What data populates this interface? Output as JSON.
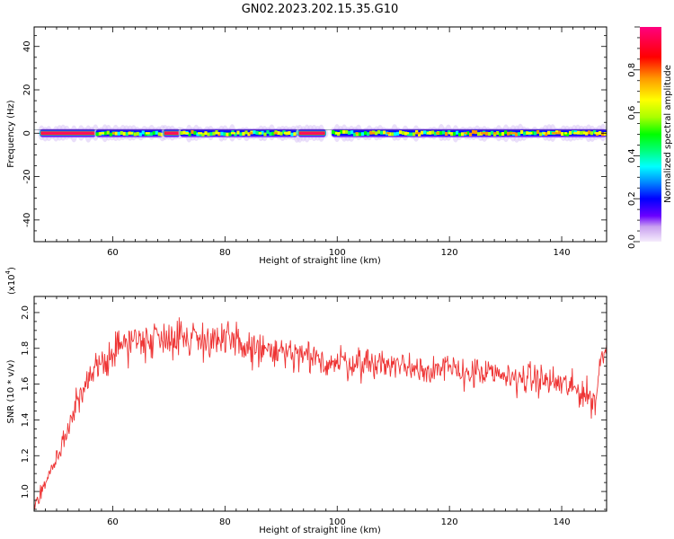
{
  "title": "GN02.2023.202.15.35.G10",
  "chart_data": [
    {
      "type": "heatmap",
      "xlabel": "Height of straight line (km)",
      "ylabel": "Frequency (Hz)",
      "xlim": [
        46,
        148
      ],
      "ylim": [
        -50,
        49
      ],
      "x_ticks": [
        60,
        80,
        100,
        120,
        140
      ],
      "y_ticks": [
        -40,
        -20,
        0,
        20,
        40
      ],
      "colorbar": {
        "label": "Normalized spectral amplitude",
        "range": [
          0,
          1
        ],
        "ticks": [
          "0.0",
          "0.2",
          "0.4",
          "0.6",
          "0.8"
        ],
        "tick_values": [
          0,
          0.2,
          0.4,
          0.6,
          0.8
        ],
        "colors": [
          "#f5ecfc",
          "#c9a0f0",
          "#6a00ff",
          "#0000ff",
          "#0090ff",
          "#00ffff",
          "#00ff80",
          "#00ff00",
          "#aaff00",
          "#ffff00",
          "#ff9900",
          "#ff0000",
          "#ff007f"
        ]
      },
      "band_center_hz": 0,
      "gaps_km": [
        [
          68.5,
          70.5
        ],
        [
          98,
          99
        ]
      ],
      "segments": [
        {
          "x": [
            47,
            57
          ],
          "intensity": "red"
        },
        {
          "x": [
            57,
            69
          ],
          "intensity": "mixed"
        },
        {
          "x": [
            69,
            72
          ],
          "intensity": "red"
        },
        {
          "x": [
            72,
            93
          ],
          "intensity": "mixed"
        },
        {
          "x": [
            93,
            98
          ],
          "intensity": "red"
        },
        {
          "x": [
            99,
            148
          ],
          "intensity": "mixed"
        }
      ]
    },
    {
      "type": "line",
      "xlabel": "Height of straight line (km)",
      "ylabel": "SNR (10 * v/v)",
      "y_multiplier": "(x10⁴)",
      "multiplier_base": "(x10",
      "multiplier_exp": "4",
      "multiplier_close": ")",
      "xlim": [
        46,
        148
      ],
      "ylim": [
        0.89,
        2.09
      ],
      "x_ticks": [
        60,
        80,
        100,
        120,
        140
      ],
      "y_ticks": [
        "1.0",
        "1.2",
        "1.4",
        "1.6",
        "1.8",
        "2.0"
      ],
      "y_tick_values": [
        1.0,
        1.2,
        1.4,
        1.6,
        1.8,
        2.0
      ],
      "series": [
        {
          "color": "#ee3333",
          "x": [
            46,
            48,
            50,
            52,
            54,
            56,
            58,
            60,
            62,
            65,
            70,
            75,
            80,
            85,
            90,
            95,
            100,
            105,
            110,
            115,
            120,
            125,
            130,
            135,
            140,
            144,
            146,
            147,
            148
          ],
          "y": [
            0.92,
            1.05,
            1.18,
            1.35,
            1.52,
            1.62,
            1.72,
            1.78,
            1.83,
            1.85,
            1.87,
            1.86,
            1.84,
            1.8,
            1.77,
            1.74,
            1.72,
            1.72,
            1.71,
            1.69,
            1.68,
            1.66,
            1.64,
            1.63,
            1.6,
            1.55,
            1.5,
            1.75,
            1.8
          ],
          "noise": [
            0.03,
            0.04,
            0.06,
            0.07,
            0.07,
            0.08,
            0.09,
            0.09,
            0.1,
            0.1,
            0.1,
            0.1,
            0.1,
            0.1,
            0.09,
            0.09,
            0.09,
            0.08,
            0.08,
            0.08,
            0.08,
            0.08,
            0.08,
            0.08,
            0.08,
            0.08,
            0.09,
            0.06,
            0.06
          ]
        }
      ]
    }
  ]
}
